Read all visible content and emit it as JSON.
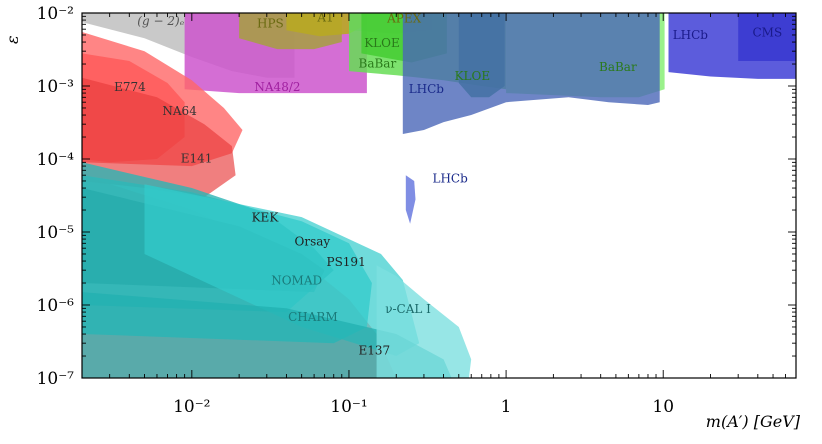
{
  "chart_data": {
    "type": "area",
    "title": "",
    "xlabel": "m(A′) [GeV]",
    "ylabel": "ε",
    "xscale": "log",
    "yscale": "log",
    "xlim": [
      0.002,
      70
    ],
    "ylim": [
      1e-07,
      0.01
    ],
    "x_ticks": [
      {
        "value": 0.01,
        "label": "10⁻²"
      },
      {
        "value": 0.1,
        "label": "10⁻¹"
      },
      {
        "value": 1,
        "label": "1"
      },
      {
        "value": 10,
        "label": "10"
      }
    ],
    "y_ticks": [
      {
        "value": 0.01,
        "label": "10⁻²"
      },
      {
        "value": 0.001,
        "label": "10⁻³"
      },
      {
        "value": 0.0001,
        "label": "10⁻⁴"
      },
      {
        "value": 1e-05,
        "label": "10⁻⁵"
      },
      {
        "value": 1e-06,
        "label": "10⁻⁶"
      },
      {
        "value": 1e-07,
        "label": "10⁻⁷"
      }
    ],
    "regions": [
      {
        "name": "g-2e",
        "label": "(g − 2)ₑ",
        "kind": "band",
        "color": "#c0c0c0",
        "opacity": 0.85,
        "label_at": [
          0.0045,
          0.0069
        ],
        "label_color": "#555555",
        "polygon": [
          [
            0.002,
            0.01
          ],
          [
            0.002,
            0.0075
          ],
          [
            0.005,
            0.0045
          ],
          [
            0.01,
            0.0025
          ],
          [
            0.018,
            0.0016
          ],
          [
            0.03,
            0.0013
          ],
          [
            0.045,
            0.0013
          ],
          [
            0.045,
            0.01
          ]
        ]
      },
      {
        "name": "na48",
        "label": "NA48/2",
        "kind": "band",
        "color": "#cc55cc",
        "opacity": 0.85,
        "label_at": [
          0.025,
          0.00085
        ],
        "label_color": "#a020a0",
        "polygon": [
          [
            0.009,
            0.01
          ],
          [
            0.009,
            0.0009
          ],
          [
            0.02,
            0.0008
          ],
          [
            0.05,
            0.0008
          ],
          [
            0.09,
            0.0008
          ],
          [
            0.13,
            0.0008
          ],
          [
            0.13,
            0.01
          ]
        ]
      },
      {
        "name": "hps",
        "label": "HPS",
        "kind": "band",
        "color": "#a6a040",
        "opacity": 0.85,
        "label_at": [
          0.026,
          0.0063
        ],
        "label_color": "#6a6a10",
        "polygon": [
          [
            0.02,
            0.01
          ],
          [
            0.02,
            0.0045
          ],
          [
            0.035,
            0.0032
          ],
          [
            0.06,
            0.0032
          ],
          [
            0.09,
            0.004
          ],
          [
            0.09,
            0.01
          ]
        ]
      },
      {
        "name": "a1",
        "label": "A1",
        "kind": "band",
        "color": "#b8a824",
        "opacity": 0.9,
        "label_at": [
          0.063,
          0.0076
        ],
        "label_color": "#6a6a10",
        "polygon": [
          [
            0.04,
            0.01
          ],
          [
            0.04,
            0.0058
          ],
          [
            0.065,
            0.0048
          ],
          [
            0.1,
            0.0052
          ],
          [
            0.13,
            0.007
          ],
          [
            0.13,
            0.01
          ]
        ]
      },
      {
        "name": "apex",
        "label": "APEX",
        "kind": "band",
        "color": "#888888",
        "opacity": 0.7,
        "label_at": [
          0.175,
          0.0074
        ],
        "label_color": "#6a6a10",
        "polygon": [
          [
            0.1,
            0.01
          ],
          [
            0.1,
            0.0058
          ],
          [
            0.2,
            0.0052
          ],
          [
            0.34,
            0.0058
          ],
          [
            0.34,
            0.01
          ]
        ]
      },
      {
        "name": "babar-low",
        "label": "BaBar",
        "kind": "band",
        "color": "#66dd55",
        "opacity": 0.85,
        "label_at": [
          0.115,
          0.0018
        ],
        "label_color": "#2a7a1a",
        "polygon": [
          [
            0.1,
            0.01
          ],
          [
            0.1,
            0.0016
          ],
          [
            0.2,
            0.0014
          ],
          [
            0.4,
            0.0012
          ],
          [
            0.7,
            0.001
          ],
          [
            1.0,
            0.0009
          ],
          [
            1.0,
            0.01
          ]
        ]
      },
      {
        "name": "kloe-low",
        "label": "KLOE",
        "kind": "band",
        "color": "#44cc33",
        "opacity": 0.85,
        "label_at": [
          0.125,
          0.0034
        ],
        "label_color": "#2a7a1a",
        "polygon": [
          [
            0.12,
            0.01
          ],
          [
            0.12,
            0.0028
          ],
          [
            0.25,
            0.0021
          ],
          [
            0.42,
            0.0028
          ],
          [
            0.42,
            0.01
          ]
        ]
      },
      {
        "name": "kloe-high",
        "label": "KLOE",
        "kind": "band",
        "color": "#2a9a55",
        "opacity": 0.85,
        "label_at": [
          0.47,
          0.0012
        ],
        "label_color": "#2a7a1a",
        "polygon": [
          [
            0.5,
            0.01
          ],
          [
            0.5,
            0.0011
          ],
          [
            0.6,
            0.0007
          ],
          [
            0.78,
            0.0007
          ],
          [
            0.98,
            0.001
          ],
          [
            0.98,
            0.01
          ]
        ]
      },
      {
        "name": "babar-high",
        "label": "BaBar",
        "kind": "band",
        "color": "#88ee77",
        "opacity": 0.85,
        "label_at": [
          3.9,
          0.0016
        ],
        "label_color": "#2a7a1a",
        "polygon": [
          [
            1.0,
            0.01
          ],
          [
            1.0,
            0.0008
          ],
          [
            2,
            0.00075
          ],
          [
            4,
            0.0007
          ],
          [
            7,
            0.0007
          ],
          [
            10.2,
            0.0009
          ],
          [
            10.2,
            0.01
          ]
        ]
      },
      {
        "name": "lhcb-low",
        "label": "LHCb",
        "kind": "band",
        "color": "#4a67b8",
        "opacity": 0.8,
        "label_at": [
          0.24,
          0.0008
        ],
        "label_color": "#1a2a8a",
        "polygon": [
          [
            0.22,
            0.01
          ],
          [
            0.22,
            0.00022
          ],
          [
            0.3,
            0.00025
          ],
          [
            0.4,
            0.00032
          ],
          [
            0.6,
            0.0004
          ],
          [
            1.0,
            0.0006
          ],
          [
            2.5,
            0.0007
          ],
          [
            4.5,
            0.0006
          ],
          [
            8,
            0.00055
          ],
          [
            9.5,
            0.0006
          ],
          [
            9.5,
            0.01
          ]
        ]
      },
      {
        "name": "lhcb-high",
        "label": "LHCb",
        "kind": "band",
        "color": "#4a4ad8",
        "opacity": 0.9,
        "label_at": [
          11.5,
          0.0044
        ],
        "label_color": "#1a1a8a",
        "polygon": [
          [
            10.8,
            0.01
          ],
          [
            10.8,
            0.00155
          ],
          [
            20,
            0.00135
          ],
          [
            40,
            0.00125
          ],
          [
            70,
            0.00125
          ],
          [
            70,
            0.01
          ]
        ]
      },
      {
        "name": "cms",
        "label": "CMS",
        "kind": "band",
        "color": "#3a3ad0",
        "opacity": 0.9,
        "label_at": [
          37,
          0.0048
        ],
        "label_color": "#1a1a8a",
        "polygon": [
          [
            30,
            0.01
          ],
          [
            30,
            0.0022
          ],
          [
            70,
            0.0022
          ],
          [
            70,
            0.01
          ]
        ]
      },
      {
        "name": "lhcb-island",
        "label": "LHCb",
        "kind": "island",
        "color": "#6a7adf",
        "opacity": 0.85,
        "label_at": [
          0.34,
          4.8e-05
        ],
        "label_color": "#1a2a8a",
        "polygon": [
          [
            0.23,
            6e-05
          ],
          [
            0.26,
            5e-05
          ],
          [
            0.265,
            2.8e-05
          ],
          [
            0.245,
            1.3e-05
          ],
          [
            0.23,
            2e-05
          ]
        ]
      },
      {
        "name": "e774",
        "label": "E774",
        "kind": "exclusion",
        "color": "#ff2a2a",
        "opacity": 0.85,
        "label_at": [
          0.0032,
          0.00085
        ],
        "label_color": "#333333",
        "polygon": [
          [
            0.002,
            0.0028
          ],
          [
            0.004,
            0.0022
          ],
          [
            0.007,
            0.0011
          ],
          [
            0.009,
            0.0006
          ],
          [
            0.009,
            0.0002
          ],
          [
            0.006,
            0.0001
          ],
          [
            0.003,
            9e-05
          ],
          [
            0.002,
            0.0001
          ]
        ]
      },
      {
        "name": "na64",
        "label": "NA64",
        "kind": "exclusion",
        "color": "#ff6666",
        "opacity": 0.8,
        "label_at": [
          0.0065,
          0.0004
        ],
        "label_color": "#333333",
        "polygon": [
          [
            0.002,
            0.0055
          ],
          [
            0.005,
            0.003
          ],
          [
            0.01,
            0.0012
          ],
          [
            0.016,
            0.0005
          ],
          [
            0.021,
            0.00025
          ],
          [
            0.018,
            0.00012
          ],
          [
            0.01,
            8e-05
          ],
          [
            0.002,
            9e-05
          ]
        ]
      },
      {
        "name": "e141",
        "label": "E141",
        "kind": "exclusion",
        "color": "#e83a3a",
        "opacity": 0.65,
        "label_at": [
          0.0085,
          9e-05
        ],
        "label_color": "#333333",
        "polygon": [
          [
            0.002,
            0.0013
          ],
          [
            0.006,
            0.0007
          ],
          [
            0.012,
            0.0003
          ],
          [
            0.018,
            0.00015
          ],
          [
            0.019,
            6e-05
          ],
          [
            0.012,
            3e-05
          ],
          [
            0.005,
            4e-05
          ],
          [
            0.002,
            5e-05
          ]
        ]
      },
      {
        "name": "e137",
        "label": "E137",
        "kind": "exclusion",
        "color": "#ff5555",
        "opacity": 0.6,
        "label_at": [
          0.115,
          2.1e-07
        ],
        "label_color": "#222222",
        "polygon": [
          [
            0.002,
            6e-05
          ],
          [
            0.01,
            2e-05
          ],
          [
            0.05,
            4e-06
          ],
          [
            0.1,
            1.2e-06
          ],
          [
            0.15,
            4e-07
          ],
          [
            0.2,
            1e-07
          ],
          [
            0.002,
            1e-07
          ]
        ]
      },
      {
        "name": "nomad",
        "label": "NOMAD",
        "kind": "exclusion",
        "color": "#2cc8c8",
        "opacity": 0.75,
        "label_at": [
          0.032,
          1.9e-06
        ],
        "label_color": "#1a7a7a",
        "polygon": [
          [
            0.002,
            6e-05
          ],
          [
            0.01,
            3.5e-05
          ],
          [
            0.05,
            1.4e-05
          ],
          [
            0.1,
            7e-06
          ],
          [
            0.14,
            2e-06
          ],
          [
            0.13,
            5e-07
          ],
          [
            0.08,
            3e-07
          ],
          [
            0.002,
            4e-07
          ]
        ]
      },
      {
        "name": "kek",
        "label": "KEK",
        "kind": "exclusion",
        "color": "#2ab5b5",
        "opacity": 0.8,
        "label_at": [
          0.024,
          1.4e-05
        ],
        "label_color": "#222222",
        "polygon": [
          [
            0.002,
            9e-05
          ],
          [
            0.01,
            4e-05
          ],
          [
            0.03,
            1.8e-05
          ],
          [
            0.06,
            6e-06
          ],
          [
            0.08,
            3e-06
          ],
          [
            0.04,
            8e-07
          ],
          [
            0.002,
            1e-06
          ]
        ]
      },
      {
        "name": "orsay",
        "label": "Orsay",
        "kind": "exclusion",
        "color": "#22a8a8",
        "opacity": 0.6,
        "label_at": [
          0.045,
          6.5e-06
        ],
        "label_color": "#222222",
        "polygon": [
          [
            0.002,
            4e-05
          ],
          [
            0.02,
            1.2e-05
          ],
          [
            0.05,
            5e-06
          ],
          [
            0.07,
            3e-06
          ],
          [
            0.06,
            1.5e-06
          ],
          [
            0.002,
            2e-06
          ]
        ]
      },
      {
        "name": "ps191",
        "label": "PS191",
        "kind": "exclusion",
        "color": "#33cccc",
        "opacity": 0.7,
        "label_at": [
          0.072,
          3.4e-06
        ],
        "label_color": "#222222",
        "polygon": [
          [
            0.005,
            4.5e-05
          ],
          [
            0.05,
            1.6e-05
          ],
          [
            0.1,
            8e-06
          ],
          [
            0.16,
            5e-06
          ],
          [
            0.22,
            2.2e-06
          ],
          [
            0.28,
            3e-07
          ],
          [
            0.2,
            2e-07
          ],
          [
            0.05,
            5e-07
          ],
          [
            0.005,
            5e-06
          ]
        ]
      },
      {
        "name": "charm",
        "label": "CHARM",
        "kind": "exclusion",
        "color": "#22b0b0",
        "opacity": 0.75,
        "label_at": [
          0.041,
          6e-07
        ],
        "label_color": "#1a7a7a",
        "polygon": [
          [
            0.002,
            1.5e-06
          ],
          [
            0.04,
            9e-07
          ],
          [
            0.2,
            4e-07
          ],
          [
            0.4,
            1.8e-07
          ],
          [
            0.45,
            1e-07
          ],
          [
            0.002,
            1e-07
          ]
        ]
      },
      {
        "name": "nucal",
        "label": "ν-CAL I",
        "kind": "exclusion",
        "color": "#7de0e0",
        "opacity": 0.8,
        "label_at": [
          0.17,
          7.8e-07
        ],
        "label_color": "#1a6a6a",
        "polygon": [
          [
            0.15,
            3.5e-06
          ],
          [
            0.2,
            2.5e-06
          ],
          [
            0.3,
            1.2e-06
          ],
          [
            0.5,
            5e-07
          ],
          [
            0.6,
            1.8e-07
          ],
          [
            0.58,
            1e-07
          ],
          [
            0.15,
            1e-07
          ]
        ]
      }
    ]
  }
}
